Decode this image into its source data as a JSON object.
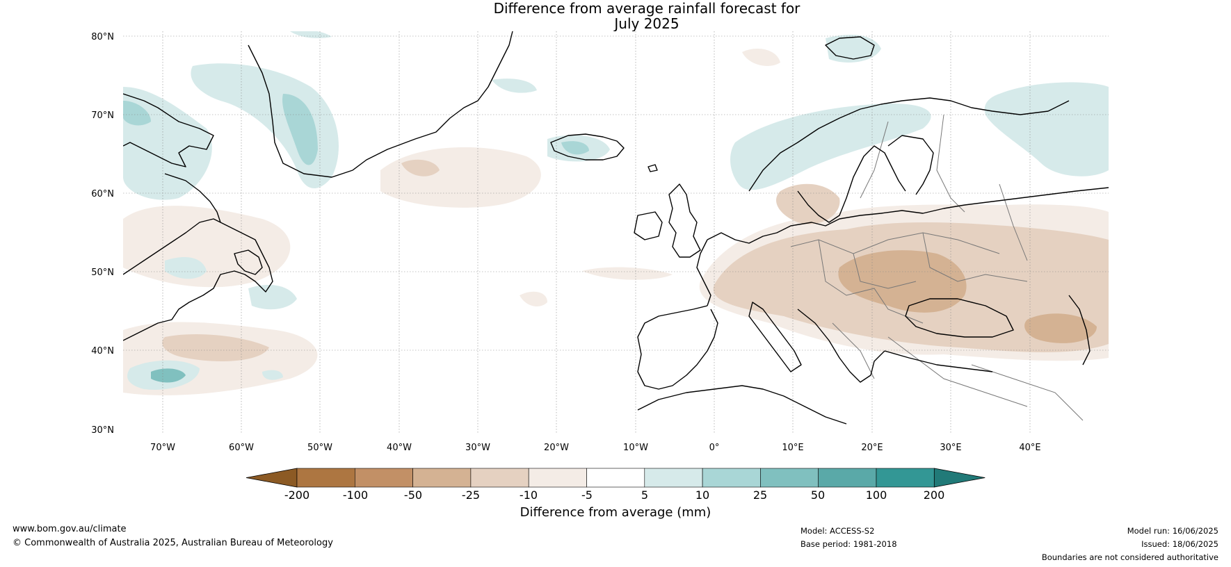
{
  "title": {
    "line1": "Difference from average rainfall forecast for",
    "line2": "July 2025"
  },
  "map": {
    "lat_labels": [
      "80°N",
      "70°N",
      "60°N",
      "50°N",
      "40°N",
      "30°N"
    ],
    "lon_labels": [
      "70°W",
      "60°W",
      "50°W",
      "40°W",
      "30°W",
      "20°W",
      "10°W",
      "0°",
      "10°E",
      "20°E",
      "30°E",
      "40°E"
    ],
    "colors": {
      "coastline": "#000000",
      "borders": "#777777",
      "gridlines": "#888888"
    }
  },
  "colorbar": {
    "label": "Difference from average (mm)",
    "ticks": [
      "-200",
      "-100",
      "-50",
      "-25",
      "-10",
      "-5",
      "5",
      "10",
      "25",
      "50",
      "100",
      "200"
    ],
    "colors": [
      "#8c5a24",
      "#ad7641",
      "#c29066",
      "#d4b293",
      "#e5d1c1",
      "#f4ece6",
      "#ffffff",
      "#d6eaea",
      "#a9d6d6",
      "#80c0bf",
      "#5aa9a8",
      "#339795",
      "#217a78"
    ]
  },
  "footer": {
    "website": "www.bom.gov.au/climate",
    "copyright": "© Commonwealth of Australia 2025, Australian Bureau of Meteorology",
    "model": "Model: ACCESS-S2",
    "base_period": "Base period: 1981-2018",
    "model_run": "Model run: 16/06/2025",
    "issued": "Issued: 18/06/2025",
    "disclaimer": "Boundaries are not considered authoritative"
  }
}
